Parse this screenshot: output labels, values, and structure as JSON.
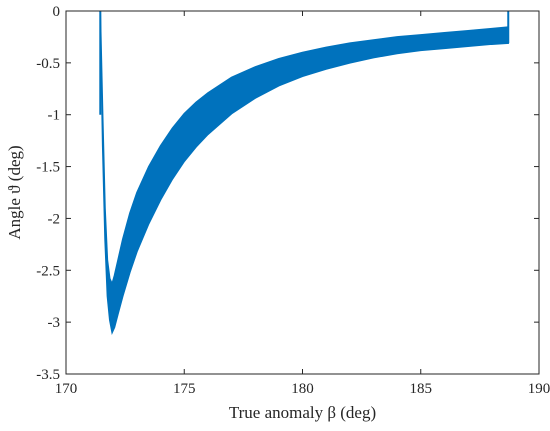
{
  "chart_data": {
    "type": "line",
    "title": "",
    "xlabel": "True anomaly β (deg)",
    "ylabel": "Angle ϑ (deg)",
    "xlim": [
      170,
      190
    ],
    "ylim": [
      -3.5,
      0
    ],
    "x_ticks": [
      "170",
      "175",
      "180",
      "185",
      "190"
    ],
    "y_ticks": [
      "0",
      "-0.5",
      "-1",
      "-1.5",
      "-2",
      "-2.5",
      "-3",
      "-3.5"
    ],
    "grid": false,
    "legend": "none",
    "series_color": "#0072BD",
    "series": [
      {
        "kind": "oscillation-band",
        "x": [
          171.45,
          171.55,
          171.65,
          171.75,
          171.85,
          171.95,
          172.05,
          172.2,
          172.4,
          172.7,
          173.0,
          173.5,
          174.0,
          174.5,
          175.0,
          175.5,
          176.0,
          177.0,
          178.0,
          179.0,
          180.0,
          181.0,
          182.0,
          183.0,
          184.0,
          185.0,
          186.0,
          187.0,
          188.0,
          188.7
        ],
        "upper": [
          0.0,
          -1.0,
          -1.9,
          -2.4,
          -2.58,
          -2.63,
          -2.55,
          -2.4,
          -2.2,
          -1.95,
          -1.75,
          -1.5,
          -1.3,
          -1.13,
          -0.99,
          -0.88,
          -0.79,
          -0.64,
          -0.54,
          -0.46,
          -0.4,
          -0.35,
          -0.31,
          -0.28,
          -0.25,
          -0.23,
          -0.21,
          -0.19,
          -0.17,
          -0.155
        ],
        "lower": [
          0.0,
          -1.3,
          -2.2,
          -2.75,
          -2.98,
          -3.1,
          -3.05,
          -2.92,
          -2.75,
          -2.52,
          -2.32,
          -2.05,
          -1.82,
          -1.62,
          -1.45,
          -1.31,
          -1.19,
          -0.99,
          -0.84,
          -0.72,
          -0.63,
          -0.56,
          -0.5,
          -0.45,
          -0.41,
          -0.38,
          -0.36,
          -0.34,
          -0.32,
          -0.31
        ]
      }
    ]
  }
}
